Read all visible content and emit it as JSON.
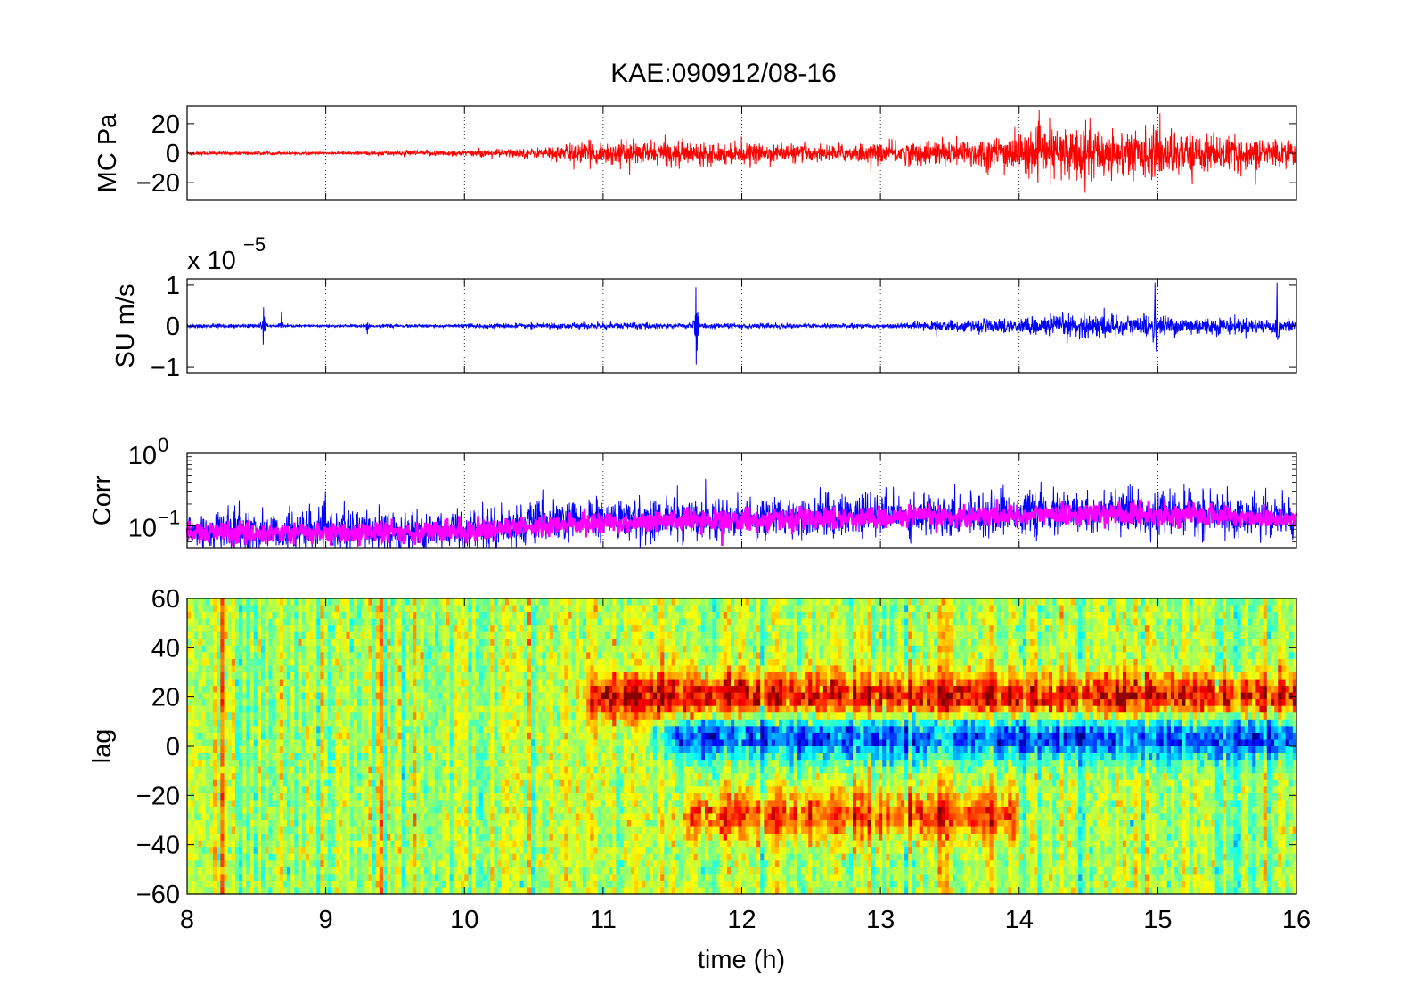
{
  "title": "KAE:090912/08-16",
  "xlabel": "time (h)",
  "chart_data": [
    {
      "type": "line",
      "ylabel": "MC Pa",
      "xlim": [
        8,
        16
      ],
      "ylim": [
        -32,
        32
      ],
      "yticks": [
        -20,
        0,
        20
      ],
      "ytick_labels": [
        "−20",
        "0",
        "20"
      ],
      "color": "#ff0000",
      "amplitude_envelope": [
        {
          "t": 8.0,
          "a": 1
        },
        {
          "t": 8.5,
          "a": 1
        },
        {
          "t": 9.0,
          "a": 0.6
        },
        {
          "t": 9.5,
          "a": 1.5
        },
        {
          "t": 10.0,
          "a": 2
        },
        {
          "t": 10.5,
          "a": 3
        },
        {
          "t": 10.8,
          "a": 6
        },
        {
          "t": 11.0,
          "a": 7
        },
        {
          "t": 11.5,
          "a": 7
        },
        {
          "t": 12.0,
          "a": 6
        },
        {
          "t": 12.5,
          "a": 5
        },
        {
          "t": 13.0,
          "a": 6
        },
        {
          "t": 13.5,
          "a": 8
        },
        {
          "t": 14.0,
          "a": 12
        },
        {
          "t": 14.4,
          "a": 17
        },
        {
          "t": 14.8,
          "a": 14
        },
        {
          "t": 15.0,
          "a": 15
        },
        {
          "t": 15.5,
          "a": 10
        },
        {
          "t": 16.0,
          "a": 8
        }
      ]
    },
    {
      "type": "line",
      "ylabel": "SU m/s",
      "y_multiplier": "x 10",
      "y_multiplier_exp": "−5",
      "xlim": [
        8,
        16
      ],
      "ylim": [
        -1.15,
        1.15
      ],
      "yticks": [
        -1,
        0,
        1
      ],
      "ytick_labels": [
        "−1",
        "0",
        "1"
      ],
      "color": "#0000ff",
      "amplitude_envelope": [
        {
          "t": 8.0,
          "a": 0.05
        },
        {
          "t": 9.0,
          "a": 0.03
        },
        {
          "t": 10.0,
          "a": 0.04
        },
        {
          "t": 10.5,
          "a": 0.06
        },
        {
          "t": 11.0,
          "a": 0.08
        },
        {
          "t": 12.0,
          "a": 0.06
        },
        {
          "t": 13.0,
          "a": 0.05
        },
        {
          "t": 13.5,
          "a": 0.12
        },
        {
          "t": 14.0,
          "a": 0.18
        },
        {
          "t": 14.4,
          "a": 0.3
        },
        {
          "t": 15.0,
          "a": 0.25
        },
        {
          "t": 15.5,
          "a": 0.2
        },
        {
          "t": 16.0,
          "a": 0.15
        }
      ],
      "spikes": [
        {
          "t": 8.55,
          "a": 0.45
        },
        {
          "t": 8.68,
          "a": 0.35
        },
        {
          "t": 9.3,
          "a": 0.2
        },
        {
          "t": 11.67,
          "a": 0.95
        },
        {
          "t": 14.98,
          "a": 1.05
        },
        {
          "t": 15.86,
          "a": 1.05
        }
      ]
    },
    {
      "type": "line",
      "ylabel": "Corr",
      "y_scale": "log",
      "xlim": [
        8,
        16
      ],
      "ylim": [
        0.05,
        1
      ],
      "yticks": [
        0.1,
        1
      ],
      "ytick_labels": [
        {
          "base": "10",
          "exp": "−1"
        },
        {
          "base": "10",
          "exp": "0"
        }
      ],
      "series": [
        {
          "color": "#0000ff",
          "level": [
            {
              "t": 8,
              "v": 0.085
            },
            {
              "t": 9,
              "v": 0.085
            },
            {
              "t": 10,
              "v": 0.09
            },
            {
              "t": 11,
              "v": 0.12
            },
            {
              "t": 12,
              "v": 0.13
            },
            {
              "t": 13,
              "v": 0.14
            },
            {
              "t": 14,
              "v": 0.15
            },
            {
              "t": 15,
              "v": 0.15
            },
            {
              "t": 16,
              "v": 0.13
            }
          ]
        },
        {
          "color": "#ff00ff",
          "level": [
            {
              "t": 8,
              "v": 0.08
            },
            {
              "t": 9,
              "v": 0.08
            },
            {
              "t": 10,
              "v": 0.085
            },
            {
              "t": 11,
              "v": 0.11
            },
            {
              "t": 12,
              "v": 0.12
            },
            {
              "t": 13,
              "v": 0.13
            },
            {
              "t": 14,
              "v": 0.14
            },
            {
              "t": 15,
              "v": 0.145
            },
            {
              "t": 16,
              "v": 0.125
            }
          ]
        }
      ]
    },
    {
      "type": "heatmap",
      "ylabel": "lag",
      "xlim": [
        8,
        16
      ],
      "ylim": [
        -60,
        60
      ],
      "yticks": [
        -60,
        -40,
        -20,
        0,
        20,
        40,
        60
      ],
      "ytick_labels": [
        "−60",
        "−40",
        "−20",
        "0",
        "20",
        "40",
        "60"
      ],
      "xticks": [
        8,
        9,
        10,
        11,
        12,
        13,
        14,
        15,
        16
      ],
      "xtick_labels": [
        "8",
        "9",
        "10",
        "11",
        "12",
        "13",
        "14",
        "15",
        "16"
      ],
      "colormap": "jet",
      "features": [
        {
          "t0": 10.8,
          "t1": 16.0,
          "lag": 20,
          "value": 0.7
        },
        {
          "t0": 11.3,
          "t1": 16.0,
          "lag": 4,
          "value": -0.7
        },
        {
          "t0": 11.5,
          "t1": 14.0,
          "lag": -28,
          "value": 0.5
        }
      ]
    }
  ]
}
